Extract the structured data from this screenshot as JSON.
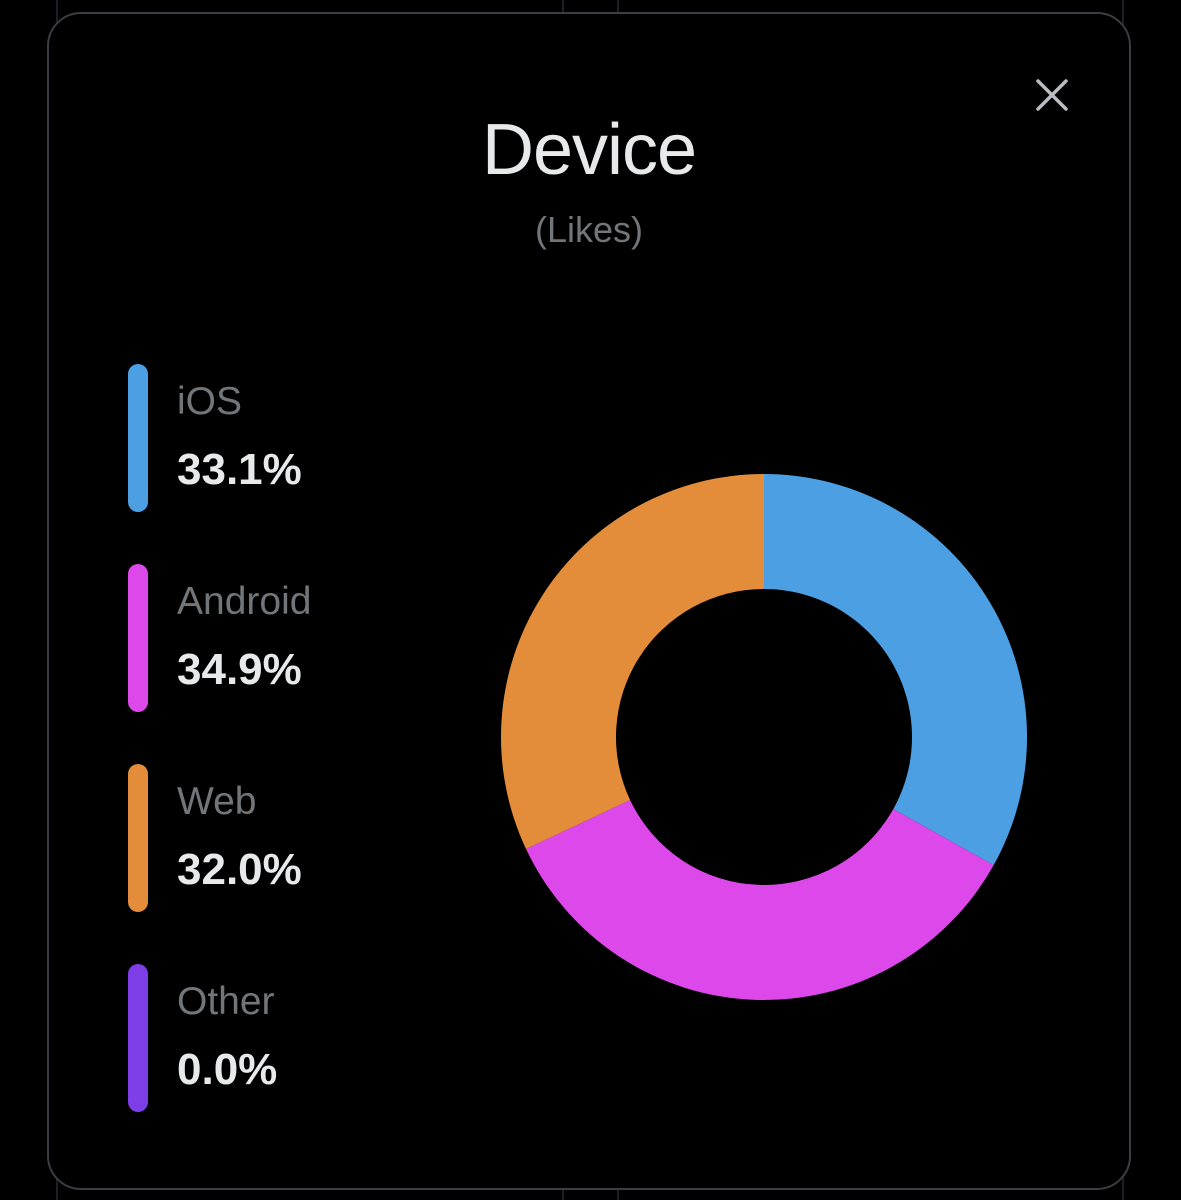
{
  "modal": {
    "title": "Device",
    "subtitle": "(Likes)",
    "close_icon": "close-icon"
  },
  "chart_data": {
    "type": "pie",
    "title": "Device",
    "subtitle": "(Likes)",
    "categories": [
      "iOS",
      "Android",
      "Web",
      "Other"
    ],
    "values": [
      33.1,
      34.9,
      32.0,
      0.0
    ],
    "value_labels": [
      "33.1%",
      "34.9%",
      "32.0%",
      "0.0%"
    ],
    "colors": [
      "#4c9fe2",
      "#dd48ea",
      "#e38c3a",
      "#7d3ee8"
    ],
    "legend": "left",
    "donut": true
  }
}
